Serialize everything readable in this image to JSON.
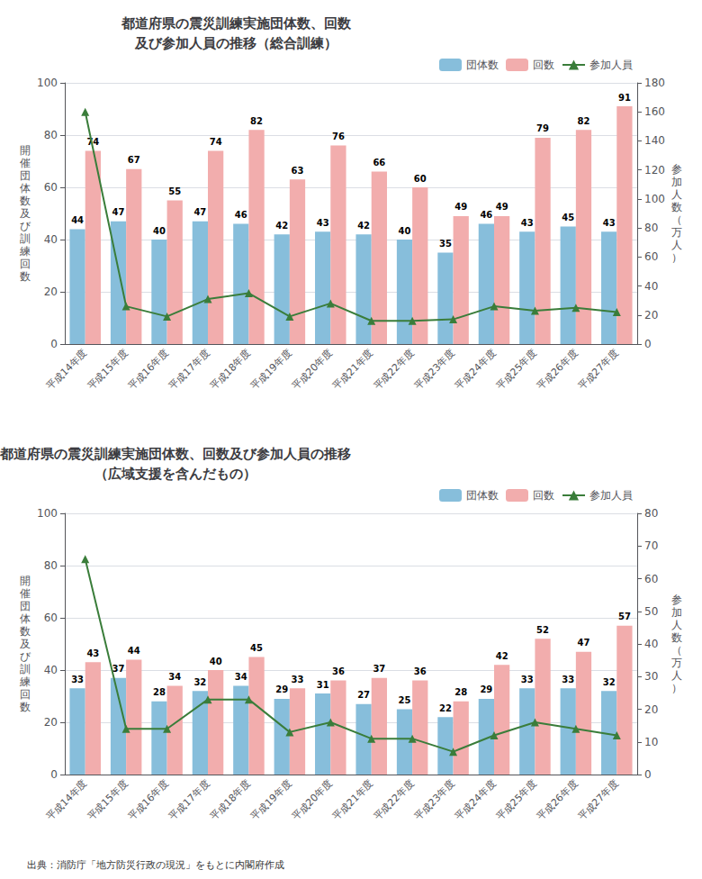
{
  "chart_data": [
    {
      "type": "bar",
      "title": "都道府県の震災訓練実施団体数、回数\n及び参加人員の推移（総合訓練）",
      "categories": [
        "平成14年度",
        "平成15年度",
        "平成16年度",
        "平成17年度",
        "平成18年度",
        "平成19年度",
        "平成20年度",
        "平成21年度",
        "平成22年度",
        "平成23年度",
        "平成24年度",
        "平成25年度",
        "平成26年度",
        "平成27年度"
      ],
      "series": [
        {
          "name": "団体数",
          "type": "bar",
          "color": "#87BEDB",
          "data_labels": true,
          "values": [
            44,
            47,
            40,
            47,
            46,
            42,
            43,
            42,
            40,
            35,
            46,
            43,
            45,
            43
          ]
        },
        {
          "name": "回数",
          "type": "bar",
          "color": "#F2ADAD",
          "data_labels": true,
          "values": [
            74,
            67,
            55,
            74,
            82,
            63,
            76,
            66,
            60,
            49,
            49,
            79,
            82,
            91
          ]
        },
        {
          "name": "参加人員",
          "type": "line",
          "axis": "y2",
          "color": "#3A7D3A",
          "marker": "triangle",
          "line_style": "solid",
          "values": [
            160,
            26,
            19,
            31,
            35,
            19,
            28,
            16,
            16,
            17,
            26,
            23,
            25,
            22
          ]
        }
      ],
      "ylabel": "開催団体数及び訓練回数",
      "y2label": "参加人数（万人）",
      "ylim": [
        0,
        100
      ],
      "yticks": [
        0,
        20,
        40,
        60,
        80,
        100
      ],
      "y2lim": [
        0,
        180
      ],
      "y2ticks": [
        0,
        20,
        40,
        60,
        80,
        100,
        120,
        140,
        160,
        180
      ],
      "grid": true,
      "legend": "upper right"
    },
    {
      "type": "bar",
      "title": "都道府県の震災訓練実施団体数、回数及び参加人員の推移\n（広域支援を含んだもの）",
      "categories": [
        "平成14年度",
        "平成15年度",
        "平成16年度",
        "平成17年度",
        "平成18年度",
        "平成19年度",
        "平成20年度",
        "平成21年度",
        "平成22年度",
        "平成23年度",
        "平成24年度",
        "平成25年度",
        "平成26年度",
        "平成27年度"
      ],
      "series": [
        {
          "name": "団体数",
          "type": "bar",
          "color": "#87BEDB",
          "data_labels": true,
          "values": [
            33,
            37,
            28,
            32,
            34,
            29,
            31,
            27,
            25,
            22,
            29,
            33,
            33,
            32
          ]
        },
        {
          "name": "回数",
          "type": "bar",
          "color": "#F2ADAD",
          "data_labels": true,
          "values": [
            43,
            44,
            34,
            40,
            45,
            33,
            36,
            37,
            36,
            28,
            42,
            52,
            47,
            57
          ]
        },
        {
          "name": "参加人員",
          "type": "line",
          "axis": "y2",
          "color": "#3A7D3A",
          "marker": "triangle",
          "line_style": "solid",
          "values": [
            66,
            14,
            14,
            23,
            23,
            13,
            16,
            11,
            11,
            7,
            12,
            16,
            14,
            12
          ]
        }
      ],
      "ylabel": "開催団体数及び訓練回数",
      "y2label": "参加人数（万人）",
      "ylim": [
        0,
        100
      ],
      "yticks": [
        0,
        20,
        40,
        60,
        80,
        100
      ],
      "y2lim": [
        0,
        80
      ],
      "y2ticks": [
        0,
        10,
        20,
        30,
        40,
        50,
        60,
        70,
        80
      ],
      "grid": true,
      "legend": "upper right",
      "annotations": [
        "出典：消防庁「地方防災行政の現況」をもとに内閣府作成"
      ]
    }
  ]
}
